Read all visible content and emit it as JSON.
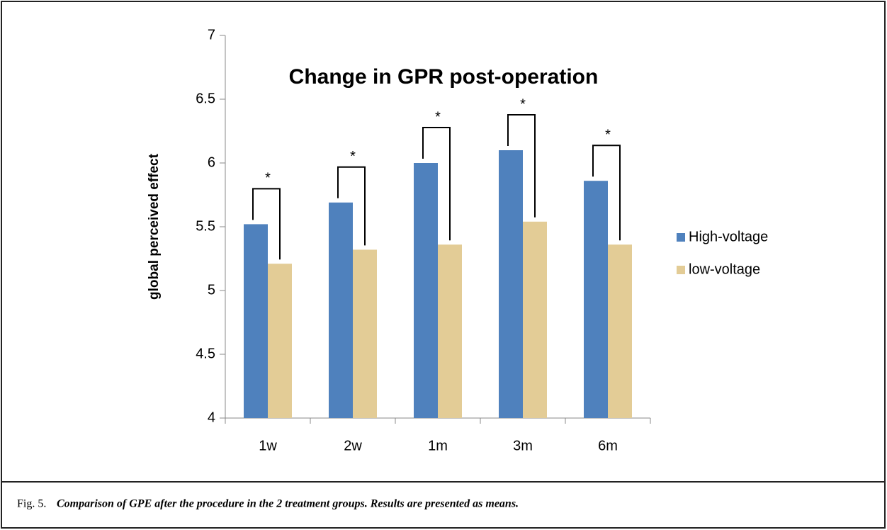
{
  "chart_data": {
    "type": "bar",
    "title": "Change in GPR post-operation",
    "y_label": "global perceived effect",
    "categories": [
      "1w",
      "2w",
      "1m",
      "3m",
      "6m"
    ],
    "series": [
      {
        "name": "High-voltage",
        "color": "#4f81bd",
        "values": [
          5.52,
          5.69,
          6.0,
          6.1,
          5.86
        ]
      },
      {
        "name": "low-voltage",
        "color": "#e3cc96",
        "values": [
          5.21,
          5.32,
          5.36,
          5.54,
          5.36
        ]
      }
    ],
    "annotations": [
      "*",
      "*",
      "*",
      "*",
      "*"
    ],
    "ylim": [
      4,
      7
    ],
    "yticks": [
      4,
      4.5,
      5,
      5.5,
      6,
      6.5,
      7
    ],
    "legend": "right"
  },
  "caption": {
    "label": "Fig. 5.",
    "text": "Comparison of  GPE after the procedure in the 2 treatment groups. Results are presented as means."
  }
}
